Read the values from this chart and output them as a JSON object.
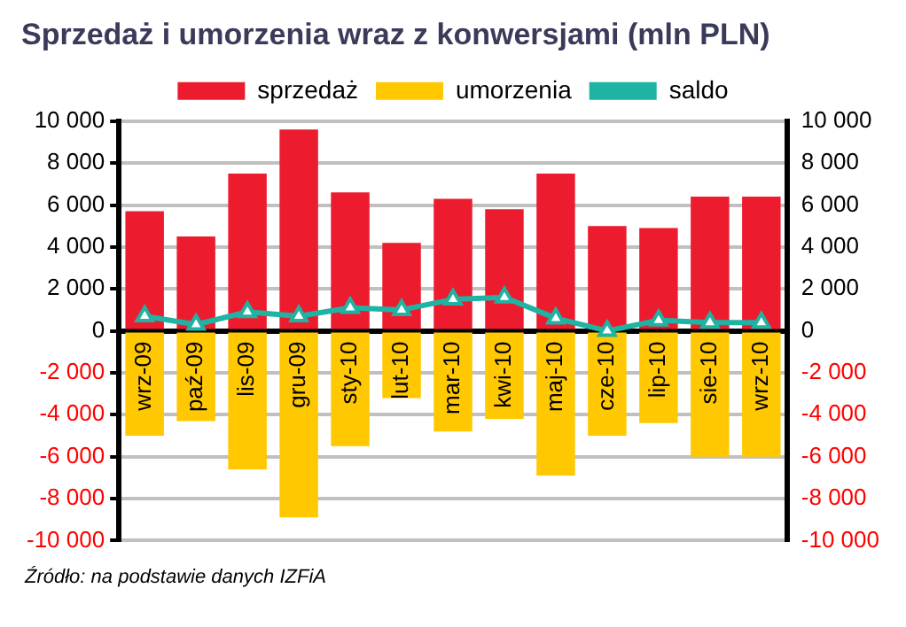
{
  "chart_data": {
    "type": "bar",
    "title": "Sprzedaż i umorzenia wraz z konwersjami (mln PLN)",
    "categories": [
      "wrz-09",
      "paź-09",
      "lis-09",
      "gru-09",
      "sty-10",
      "lut-10",
      "mar-10",
      "kwi-10",
      "maj-10",
      "cze-10",
      "lip-10",
      "sie-10",
      "wrz-10"
    ],
    "series": [
      {
        "name": "sprzedaż",
        "color": "#ec1c2e",
        "values": [
          5700,
          4500,
          7500,
          9600,
          6600,
          4200,
          6300,
          5800,
          7500,
          5000,
          4900,
          6400,
          6400
        ]
      },
      {
        "name": "umorzenia",
        "color": "#ffc800",
        "values": [
          -5000,
          -4300,
          -6600,
          -8900,
          -5500,
          -3200,
          -4800,
          -4200,
          -6900,
          -5000,
          -4400,
          -6000,
          -6000
        ]
      },
      {
        "name": "saldo",
        "type": "line",
        "color": "#1fb3a3",
        "values": [
          700,
          300,
          900,
          700,
          1100,
          1000,
          1500,
          1600,
          600,
          0,
          500,
          400,
          400
        ]
      }
    ],
    "stacked": true,
    "ylim": [
      -10000,
      10000
    ],
    "yticks": [
      {
        "value": -10000,
        "label": "-10 000"
      },
      {
        "value": -8000,
        "label": "-8 000"
      },
      {
        "value": -6000,
        "label": "-6 000"
      },
      {
        "value": -4000,
        "label": "-4 000"
      },
      {
        "value": -2000,
        "label": "-2 000"
      },
      0,
      {
        "value": 2000,
        "label": "2 000"
      },
      {
        "value": 4000,
        "label": "4 000"
      },
      {
        "value": 6000,
        "label": "6 000"
      },
      {
        "value": 8000,
        "label": "8 000"
      },
      {
        "value": 10000,
        "label": "10 000"
      }
    ],
    "y2lim": [
      -10000,
      10000
    ],
    "y2ticks": [
      {
        "value": -10000,
        "label": "-10 000"
      },
      {
        "value": -8000,
        "label": "-8 000"
      },
      {
        "value": -6000,
        "label": "-6 000"
      },
      {
        "value": -4000,
        "label": "-4 000"
      },
      {
        "value": -2000,
        "label": "-2 000"
      },
      0,
      {
        "value": 2000,
        "label": "2 000"
      },
      {
        "value": 4000,
        "label": "4 000"
      },
      {
        "value": 6000,
        "label": "6 000"
      },
      {
        "value": 8000,
        "label": "8 000"
      },
      {
        "value": 10000,
        "label": "10 000"
      }
    ],
    "grid": "y",
    "legend": "top",
    "marker": "triangle",
    "annotations": [
      "Źródło: na podstawie danych IZFiA"
    ]
  }
}
